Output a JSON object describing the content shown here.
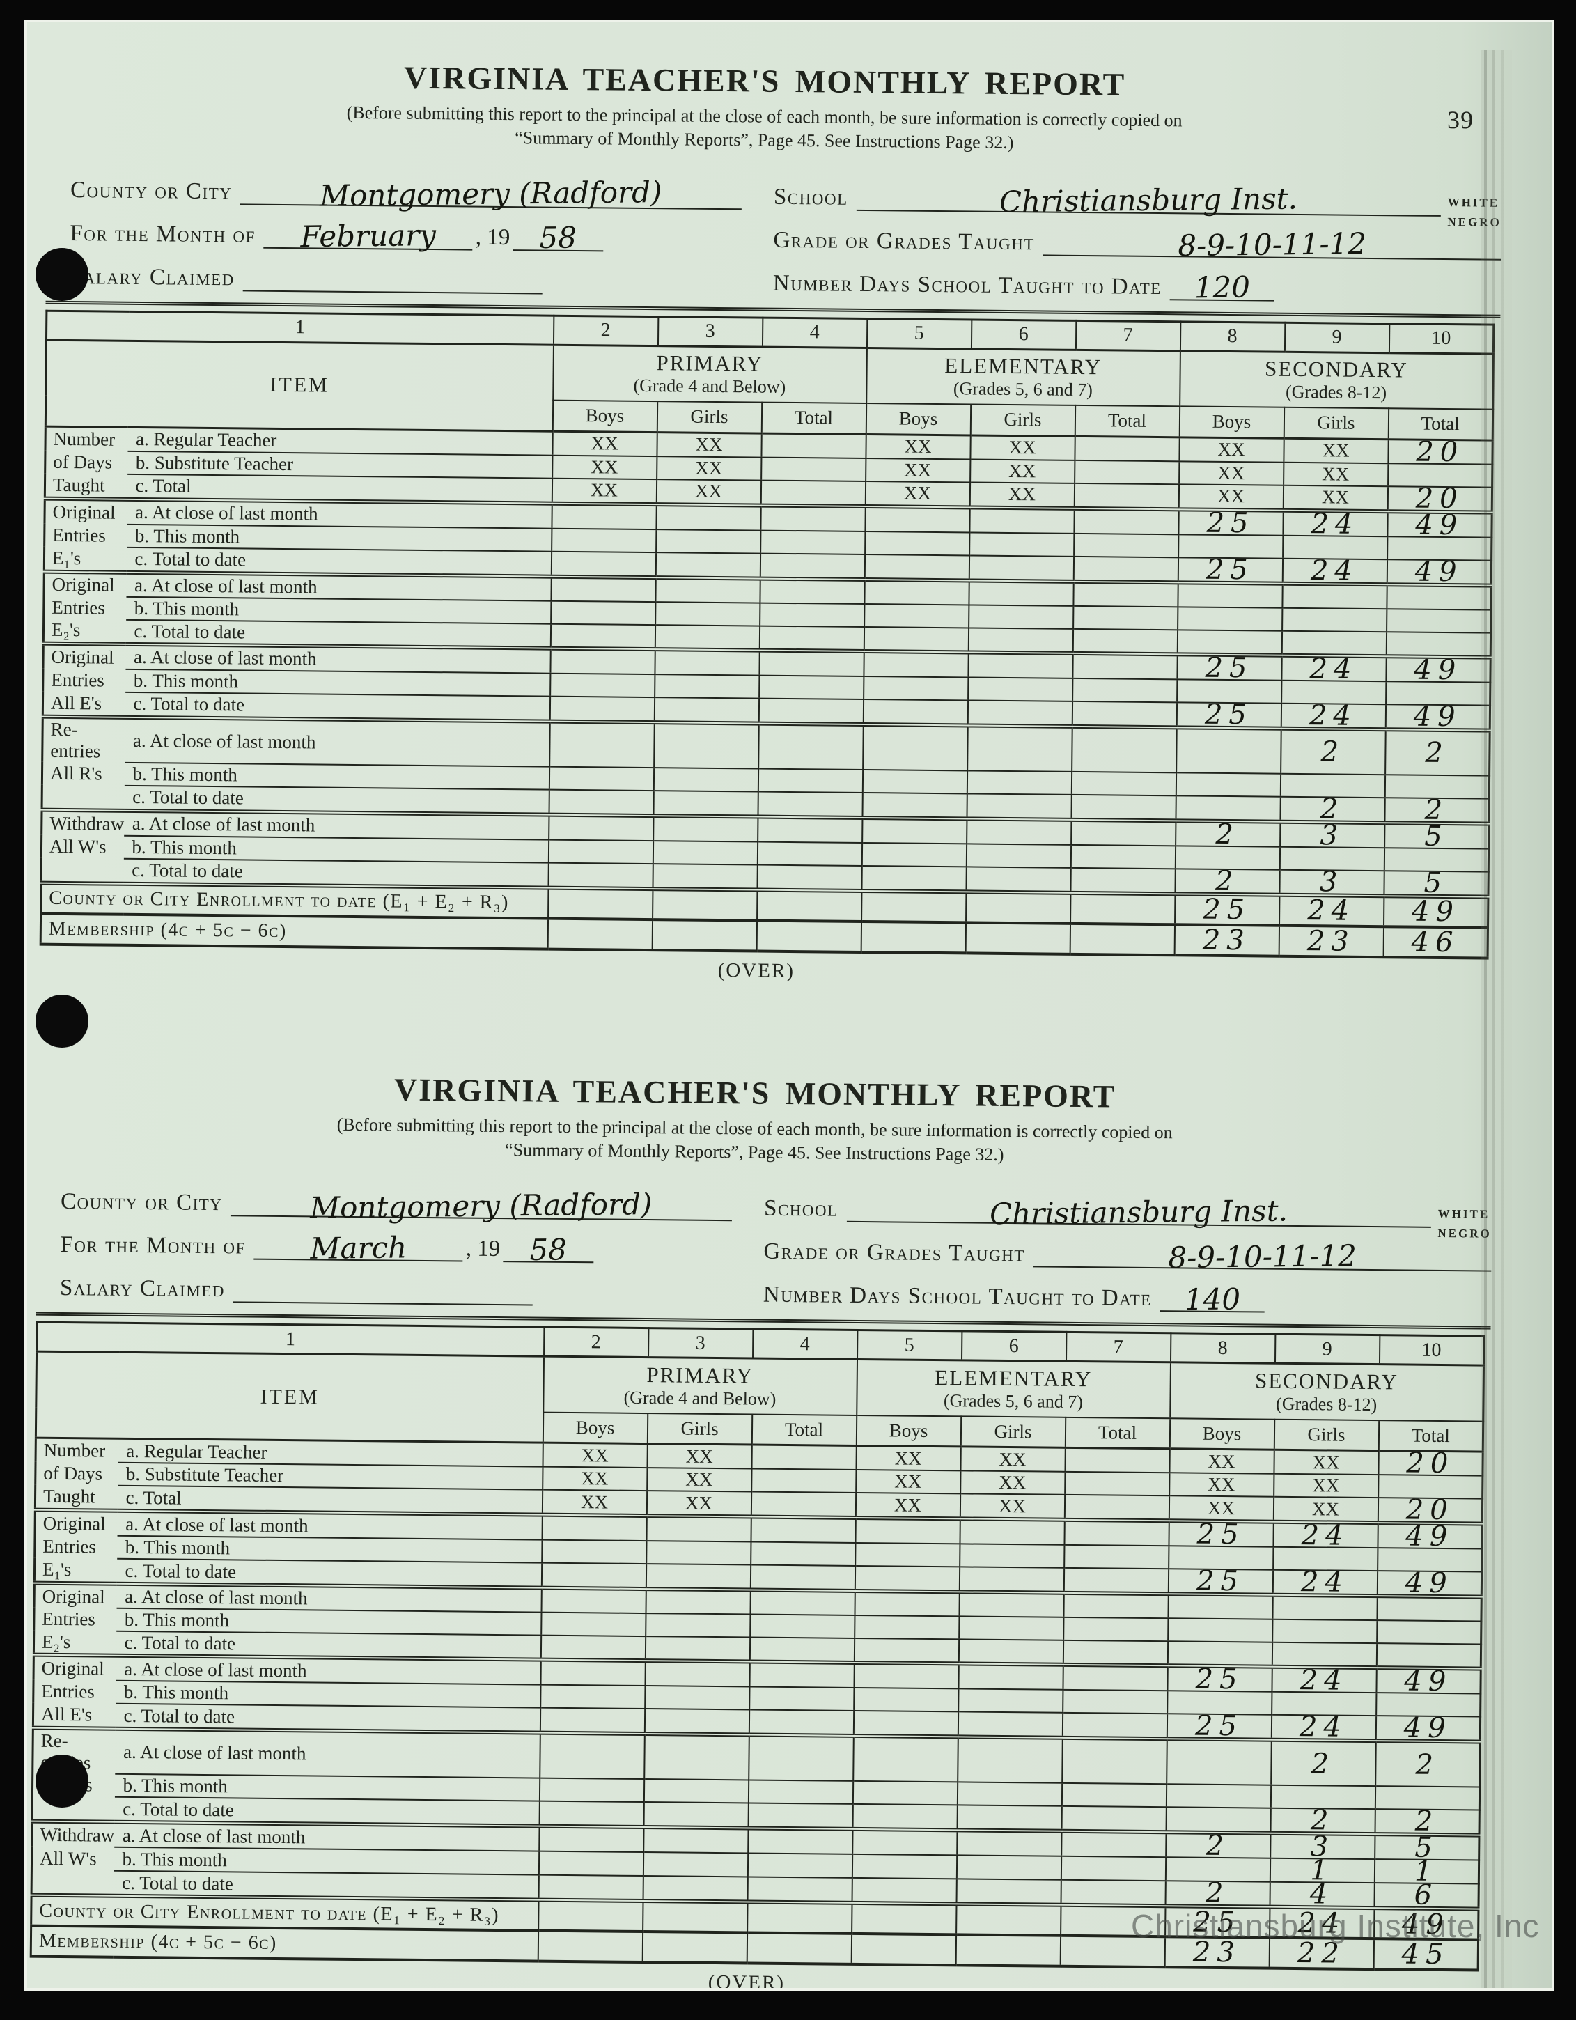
{
  "page_number": "39",
  "watermark": "Christiansburg Institute, Inc",
  "reports": [
    {
      "title": "VIRGINIA TEACHER'S MONTHLY REPORT",
      "instructions_line1": "(Before submitting this report to the principal at the close of each month, be sure information is correctly copied on",
      "instructions_line2": "“Summary of Monthly Reports”, Page 45.  See Instructions Page 32.)",
      "over_label": "(OVER)",
      "fields": {
        "county_label": "County or City",
        "county_value": "Montgomery (Radford)",
        "school_label": "School",
        "school_value": "Christiansburg Inst.",
        "race_white": "WHITE",
        "race_negro": "NEGRO",
        "month_label": "For the Month of",
        "month_value": "February",
        "year_prefix": ", 19",
        "year_value": "58",
        "grades_label": "Grade or Grades Taught",
        "grades_value": "8-9-10-11-12",
        "salary_label": "Salary Claimed",
        "salary_value": "",
        "days_label": "Number Days School Taught to Date",
        "days_value": "120"
      },
      "table": {
        "columns": [
          "1",
          "2",
          "3",
          "4",
          "5",
          "6",
          "7",
          "8",
          "9",
          "10"
        ],
        "item_header": "ITEM",
        "sections": [
          {
            "name": "PRIMARY",
            "sub": "(Grade 4 and Below)"
          },
          {
            "name": "ELEMENTARY",
            "sub": "(Grades 5, 6 and 7)"
          },
          {
            "name": "SECONDARY",
            "sub": "(Grades 8-12)"
          }
        ],
        "subcols": [
          "Boys",
          "Girls",
          "Total"
        ],
        "groups": [
          {
            "label_lines": [
              "Number",
              "of Days",
              "Taught"
            ],
            "rows": [
              {
                "item": "a. Regular Teacher",
                "cells": [
                  "XX",
                  "XX",
                  "",
                  "XX",
                  "XX",
                  "",
                  "XX",
                  "XX",
                  "20"
                ]
              },
              {
                "item": "b. Substitute Teacher",
                "cells": [
                  "XX",
                  "XX",
                  "",
                  "XX",
                  "XX",
                  "",
                  "XX",
                  "XX",
                  ""
                ]
              },
              {
                "item": "c. Total",
                "cells": [
                  "XX",
                  "XX",
                  "",
                  "XX",
                  "XX",
                  "",
                  "XX",
                  "XX",
                  "20"
                ]
              }
            ]
          },
          {
            "label_lines": [
              "Original",
              "Entries",
              "E₁'s"
            ],
            "rows": [
              {
                "item": "a. At close of last month",
                "cells": [
                  "",
                  "",
                  "",
                  "",
                  "",
                  "",
                  "25",
                  "24",
                  "49"
                ]
              },
              {
                "item": "b. This month",
                "cells": [
                  "",
                  "",
                  "",
                  "",
                  "",
                  "",
                  "",
                  "",
                  ""
                ]
              },
              {
                "item": "c. Total to date",
                "cells": [
                  "",
                  "",
                  "",
                  "",
                  "",
                  "",
                  "25",
                  "24",
                  "49"
                ]
              }
            ]
          },
          {
            "label_lines": [
              "Original",
              "Entries",
              "E₂'s"
            ],
            "rows": [
              {
                "item": "a. At close of last month",
                "cells": [
                  "",
                  "",
                  "",
                  "",
                  "",
                  "",
                  "",
                  "",
                  ""
                ]
              },
              {
                "item": "b. This month",
                "cells": [
                  "",
                  "",
                  "",
                  "",
                  "",
                  "",
                  "",
                  "",
                  ""
                ]
              },
              {
                "item": "c. Total to date",
                "cells": [
                  "",
                  "",
                  "",
                  "",
                  "",
                  "",
                  "",
                  "",
                  ""
                ]
              }
            ]
          },
          {
            "label_lines": [
              "Original",
              "Entries",
              "All E's"
            ],
            "rows": [
              {
                "item": "a. At close of last month",
                "cells": [
                  "",
                  "",
                  "",
                  "",
                  "",
                  "",
                  "25",
                  "24",
                  "49"
                ]
              },
              {
                "item": "b. This month",
                "cells": [
                  "",
                  "",
                  "",
                  "",
                  "",
                  "",
                  "",
                  "",
                  ""
                ]
              },
              {
                "item": "c. Total to date",
                "cells": [
                  "",
                  "",
                  "",
                  "",
                  "",
                  "",
                  "25",
                  "24",
                  "49"
                ]
              }
            ]
          },
          {
            "label_lines": [
              "Re-entries",
              "All R's",
              ""
            ],
            "rows": [
              {
                "item": "a. At close of last month",
                "cells": [
                  "",
                  "",
                  "",
                  "",
                  "",
                  "",
                  "",
                  "2",
                  "2"
                ]
              },
              {
                "item": "b. This month",
                "cells": [
                  "",
                  "",
                  "",
                  "",
                  "",
                  "",
                  "",
                  "",
                  ""
                ]
              },
              {
                "item": "c. Total to date",
                "cells": [
                  "",
                  "",
                  "",
                  "",
                  "",
                  "",
                  "",
                  "2",
                  "2"
                ]
              }
            ]
          },
          {
            "label_lines": [
              "Withdrawals",
              "All W's",
              ""
            ],
            "rows": [
              {
                "item": "a. At close of last month",
                "cells": [
                  "",
                  "",
                  "",
                  "",
                  "",
                  "",
                  "2",
                  "3",
                  "5"
                ]
              },
              {
                "item": "b. This month",
                "cells": [
                  "",
                  "",
                  "",
                  "",
                  "",
                  "",
                  "",
                  "",
                  ""
                ]
              },
              {
                "item": "c. Total to date",
                "cells": [
                  "",
                  "",
                  "",
                  "",
                  "",
                  "",
                  "2",
                  "3",
                  "5"
                ]
              }
            ]
          }
        ],
        "footer_rows": [
          {
            "label": "County or City Enrollment to date (E₁ + E₂ + R₃)",
            "cells": [
              "",
              "",
              "",
              "",
              "",
              "",
              "25",
              "24",
              "49"
            ]
          },
          {
            "label": "Membership (4c + 5c − 6c)",
            "cells": [
              "",
              "",
              "",
              "",
              "",
              "",
              "23",
              "23",
              "46"
            ]
          }
        ]
      }
    },
    {
      "title": "VIRGINIA TEACHER'S MONTHLY REPORT",
      "instructions_line1": "(Before submitting this report to the principal at the close of each month, be sure information is correctly copied on",
      "instructions_line2": "“Summary of Monthly Reports”, Page 45.  See Instructions Page 32.)",
      "over_label": "(OVER)",
      "fields": {
        "county_label": "County or City",
        "county_value": "Montgomery (Radford)",
        "school_label": "School",
        "school_value": "Christiansburg Inst.",
        "race_white": "WHITE",
        "race_negro": "NEGRO",
        "month_label": "For the Month of",
        "month_value": "March",
        "year_prefix": ", 19",
        "year_value": "58",
        "grades_label": "Grade or Grades Taught",
        "grades_value": "8-9-10-11-12",
        "salary_label": "Salary Claimed",
        "salary_value": "",
        "days_label": "Number Days School Taught to Date",
        "days_value": "140"
      },
      "table": {
        "columns": [
          "1",
          "2",
          "3",
          "4",
          "5",
          "6",
          "7",
          "8",
          "9",
          "10"
        ],
        "item_header": "ITEM",
        "sections": [
          {
            "name": "PRIMARY",
            "sub": "(Grade 4 and Below)"
          },
          {
            "name": "ELEMENTARY",
            "sub": "(Grades 5, 6 and 7)"
          },
          {
            "name": "SECONDARY",
            "sub": "(Grades 8-12)"
          }
        ],
        "subcols": [
          "Boys",
          "Girls",
          "Total"
        ],
        "groups": [
          {
            "label_lines": [
              "Number",
              "of Days",
              "Taught"
            ],
            "rows": [
              {
                "item": "a. Regular Teacher",
                "cells": [
                  "XX",
                  "XX",
                  "",
                  "XX",
                  "XX",
                  "",
                  "XX",
                  "XX",
                  "20"
                ]
              },
              {
                "item": "b. Substitute Teacher",
                "cells": [
                  "XX",
                  "XX",
                  "",
                  "XX",
                  "XX",
                  "",
                  "XX",
                  "XX",
                  ""
                ]
              },
              {
                "item": "c. Total",
                "cells": [
                  "XX",
                  "XX",
                  "",
                  "XX",
                  "XX",
                  "",
                  "XX",
                  "XX",
                  "20"
                ]
              }
            ]
          },
          {
            "label_lines": [
              "Original",
              "Entries",
              "E₁'s"
            ],
            "rows": [
              {
                "item": "a. At close of last month",
                "cells": [
                  "",
                  "",
                  "",
                  "",
                  "",
                  "",
                  "25",
                  "24",
                  "49"
                ]
              },
              {
                "item": "b. This month",
                "cells": [
                  "",
                  "",
                  "",
                  "",
                  "",
                  "",
                  "",
                  "",
                  ""
                ]
              },
              {
                "item": "c. Total to date",
                "cells": [
                  "",
                  "",
                  "",
                  "",
                  "",
                  "",
                  "25",
                  "24",
                  "49"
                ]
              }
            ]
          },
          {
            "label_lines": [
              "Original",
              "Entries",
              "E₂'s"
            ],
            "rows": [
              {
                "item": "a. At close of last month",
                "cells": [
                  "",
                  "",
                  "",
                  "",
                  "",
                  "",
                  "",
                  "",
                  ""
                ]
              },
              {
                "item": "b. This month",
                "cells": [
                  "",
                  "",
                  "",
                  "",
                  "",
                  "",
                  "",
                  "",
                  ""
                ]
              },
              {
                "item": "c. Total to date",
                "cells": [
                  "",
                  "",
                  "",
                  "",
                  "",
                  "",
                  "",
                  "",
                  ""
                ]
              }
            ]
          },
          {
            "label_lines": [
              "Original",
              "Entries",
              "All E's"
            ],
            "rows": [
              {
                "item": "a. At close of last month",
                "cells": [
                  "",
                  "",
                  "",
                  "",
                  "",
                  "",
                  "25",
                  "24",
                  "49"
                ]
              },
              {
                "item": "b. This month",
                "cells": [
                  "",
                  "",
                  "",
                  "",
                  "",
                  "",
                  "",
                  "",
                  ""
                ]
              },
              {
                "item": "c. Total to date",
                "cells": [
                  "",
                  "",
                  "",
                  "",
                  "",
                  "",
                  "25",
                  "24",
                  "49"
                ]
              }
            ]
          },
          {
            "label_lines": [
              "Re-entries",
              "All R's",
              ""
            ],
            "rows": [
              {
                "item": "a. At close of last month",
                "cells": [
                  "",
                  "",
                  "",
                  "",
                  "",
                  "",
                  "",
                  "2",
                  "2"
                ]
              },
              {
                "item": "b. This month",
                "cells": [
                  "",
                  "",
                  "",
                  "",
                  "",
                  "",
                  "",
                  "",
                  ""
                ]
              },
              {
                "item": "c. Total to date",
                "cells": [
                  "",
                  "",
                  "",
                  "",
                  "",
                  "",
                  "",
                  "2",
                  "2"
                ]
              }
            ]
          },
          {
            "label_lines": [
              "Withdrawals",
              "All W's",
              ""
            ],
            "rows": [
              {
                "item": "a. At close of last month",
                "cells": [
                  "",
                  "",
                  "",
                  "",
                  "",
                  "",
                  "2",
                  "3",
                  "5"
                ]
              },
              {
                "item": "b. This month",
                "cells": [
                  "",
                  "",
                  "",
                  "",
                  "",
                  "",
                  "",
                  "1",
                  "1"
                ]
              },
              {
                "item": "c. Total to date",
                "cells": [
                  "",
                  "",
                  "",
                  "",
                  "",
                  "",
                  "2",
                  "4",
                  "6"
                ]
              }
            ]
          }
        ],
        "footer_rows": [
          {
            "label": "County or City Enrollment to date (E₁ + E₂ + R₃)",
            "cells": [
              "",
              "",
              "",
              "",
              "",
              "",
              "25",
              "24",
              "49"
            ]
          },
          {
            "label": "Membership (4c + 5c − 6c)",
            "cells": [
              "",
              "",
              "",
              "",
              "",
              "",
              "23",
              "22",
              "45"
            ]
          }
        ]
      }
    }
  ]
}
